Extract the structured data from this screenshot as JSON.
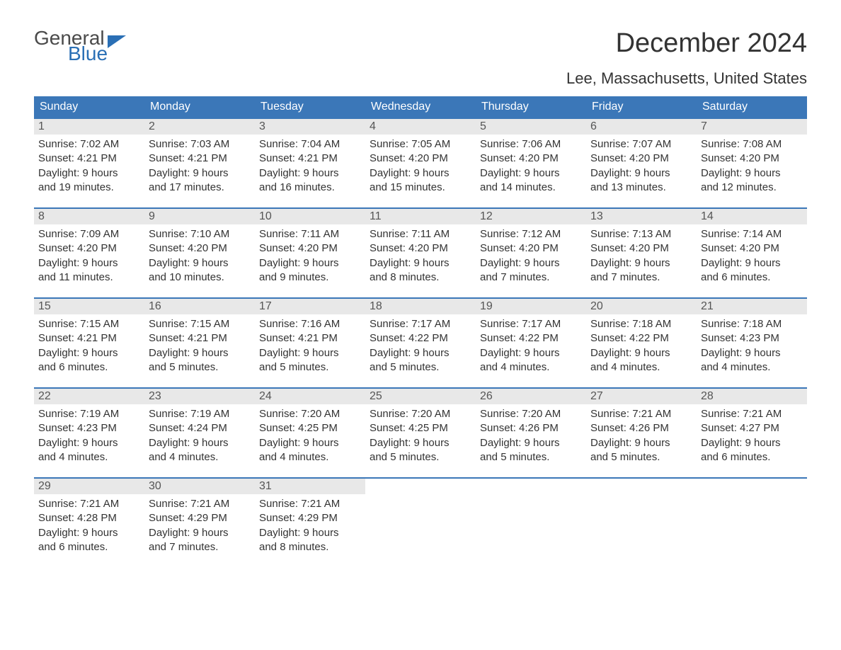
{
  "logo": {
    "word1": "General",
    "word2": "Blue",
    "flag_color": "#2a6fb5",
    "text_gray": "#4a4a4a"
  },
  "title": "December 2024",
  "location": "Lee, Massachusetts, United States",
  "weekdays": [
    "Sunday",
    "Monday",
    "Tuesday",
    "Wednesday",
    "Thursday",
    "Friday",
    "Saturday"
  ],
  "colors": {
    "header_bg": "#3b77b8",
    "header_text": "#ffffff",
    "week_border": "#3b77b8",
    "daynum_bg": "#e8e8e8",
    "body_text": "#333333"
  },
  "weeks": [
    [
      {
        "n": "1",
        "sunrise": "Sunrise: 7:02 AM",
        "sunset": "Sunset: 4:21 PM",
        "day1": "Daylight: 9 hours",
        "day2": "and 19 minutes."
      },
      {
        "n": "2",
        "sunrise": "Sunrise: 7:03 AM",
        "sunset": "Sunset: 4:21 PM",
        "day1": "Daylight: 9 hours",
        "day2": "and 17 minutes."
      },
      {
        "n": "3",
        "sunrise": "Sunrise: 7:04 AM",
        "sunset": "Sunset: 4:21 PM",
        "day1": "Daylight: 9 hours",
        "day2": "and 16 minutes."
      },
      {
        "n": "4",
        "sunrise": "Sunrise: 7:05 AM",
        "sunset": "Sunset: 4:20 PM",
        "day1": "Daylight: 9 hours",
        "day2": "and 15 minutes."
      },
      {
        "n": "5",
        "sunrise": "Sunrise: 7:06 AM",
        "sunset": "Sunset: 4:20 PM",
        "day1": "Daylight: 9 hours",
        "day2": "and 14 minutes."
      },
      {
        "n": "6",
        "sunrise": "Sunrise: 7:07 AM",
        "sunset": "Sunset: 4:20 PM",
        "day1": "Daylight: 9 hours",
        "day2": "and 13 minutes."
      },
      {
        "n": "7",
        "sunrise": "Sunrise: 7:08 AM",
        "sunset": "Sunset: 4:20 PM",
        "day1": "Daylight: 9 hours",
        "day2": "and 12 minutes."
      }
    ],
    [
      {
        "n": "8",
        "sunrise": "Sunrise: 7:09 AM",
        "sunset": "Sunset: 4:20 PM",
        "day1": "Daylight: 9 hours",
        "day2": "and 11 minutes."
      },
      {
        "n": "9",
        "sunrise": "Sunrise: 7:10 AM",
        "sunset": "Sunset: 4:20 PM",
        "day1": "Daylight: 9 hours",
        "day2": "and 10 minutes."
      },
      {
        "n": "10",
        "sunrise": "Sunrise: 7:11 AM",
        "sunset": "Sunset: 4:20 PM",
        "day1": "Daylight: 9 hours",
        "day2": "and 9 minutes."
      },
      {
        "n": "11",
        "sunrise": "Sunrise: 7:11 AM",
        "sunset": "Sunset: 4:20 PM",
        "day1": "Daylight: 9 hours",
        "day2": "and 8 minutes."
      },
      {
        "n": "12",
        "sunrise": "Sunrise: 7:12 AM",
        "sunset": "Sunset: 4:20 PM",
        "day1": "Daylight: 9 hours",
        "day2": "and 7 minutes."
      },
      {
        "n": "13",
        "sunrise": "Sunrise: 7:13 AM",
        "sunset": "Sunset: 4:20 PM",
        "day1": "Daylight: 9 hours",
        "day2": "and 7 minutes."
      },
      {
        "n": "14",
        "sunrise": "Sunrise: 7:14 AM",
        "sunset": "Sunset: 4:20 PM",
        "day1": "Daylight: 9 hours",
        "day2": "and 6 minutes."
      }
    ],
    [
      {
        "n": "15",
        "sunrise": "Sunrise: 7:15 AM",
        "sunset": "Sunset: 4:21 PM",
        "day1": "Daylight: 9 hours",
        "day2": "and 6 minutes."
      },
      {
        "n": "16",
        "sunrise": "Sunrise: 7:15 AM",
        "sunset": "Sunset: 4:21 PM",
        "day1": "Daylight: 9 hours",
        "day2": "and 5 minutes."
      },
      {
        "n": "17",
        "sunrise": "Sunrise: 7:16 AM",
        "sunset": "Sunset: 4:21 PM",
        "day1": "Daylight: 9 hours",
        "day2": "and 5 minutes."
      },
      {
        "n": "18",
        "sunrise": "Sunrise: 7:17 AM",
        "sunset": "Sunset: 4:22 PM",
        "day1": "Daylight: 9 hours",
        "day2": "and 5 minutes."
      },
      {
        "n": "19",
        "sunrise": "Sunrise: 7:17 AM",
        "sunset": "Sunset: 4:22 PM",
        "day1": "Daylight: 9 hours",
        "day2": "and 4 minutes."
      },
      {
        "n": "20",
        "sunrise": "Sunrise: 7:18 AM",
        "sunset": "Sunset: 4:22 PM",
        "day1": "Daylight: 9 hours",
        "day2": "and 4 minutes."
      },
      {
        "n": "21",
        "sunrise": "Sunrise: 7:18 AM",
        "sunset": "Sunset: 4:23 PM",
        "day1": "Daylight: 9 hours",
        "day2": "and 4 minutes."
      }
    ],
    [
      {
        "n": "22",
        "sunrise": "Sunrise: 7:19 AM",
        "sunset": "Sunset: 4:23 PM",
        "day1": "Daylight: 9 hours",
        "day2": "and 4 minutes."
      },
      {
        "n": "23",
        "sunrise": "Sunrise: 7:19 AM",
        "sunset": "Sunset: 4:24 PM",
        "day1": "Daylight: 9 hours",
        "day2": "and 4 minutes."
      },
      {
        "n": "24",
        "sunrise": "Sunrise: 7:20 AM",
        "sunset": "Sunset: 4:25 PM",
        "day1": "Daylight: 9 hours",
        "day2": "and 4 minutes."
      },
      {
        "n": "25",
        "sunrise": "Sunrise: 7:20 AM",
        "sunset": "Sunset: 4:25 PM",
        "day1": "Daylight: 9 hours",
        "day2": "and 5 minutes."
      },
      {
        "n": "26",
        "sunrise": "Sunrise: 7:20 AM",
        "sunset": "Sunset: 4:26 PM",
        "day1": "Daylight: 9 hours",
        "day2": "and 5 minutes."
      },
      {
        "n": "27",
        "sunrise": "Sunrise: 7:21 AM",
        "sunset": "Sunset: 4:26 PM",
        "day1": "Daylight: 9 hours",
        "day2": "and 5 minutes."
      },
      {
        "n": "28",
        "sunrise": "Sunrise: 7:21 AM",
        "sunset": "Sunset: 4:27 PM",
        "day1": "Daylight: 9 hours",
        "day2": "and 6 minutes."
      }
    ],
    [
      {
        "n": "29",
        "sunrise": "Sunrise: 7:21 AM",
        "sunset": "Sunset: 4:28 PM",
        "day1": "Daylight: 9 hours",
        "day2": "and 6 minutes."
      },
      {
        "n": "30",
        "sunrise": "Sunrise: 7:21 AM",
        "sunset": "Sunset: 4:29 PM",
        "day1": "Daylight: 9 hours",
        "day2": "and 7 minutes."
      },
      {
        "n": "31",
        "sunrise": "Sunrise: 7:21 AM",
        "sunset": "Sunset: 4:29 PM",
        "day1": "Daylight: 9 hours",
        "day2": "and 8 minutes."
      },
      null,
      null,
      null,
      null
    ]
  ]
}
